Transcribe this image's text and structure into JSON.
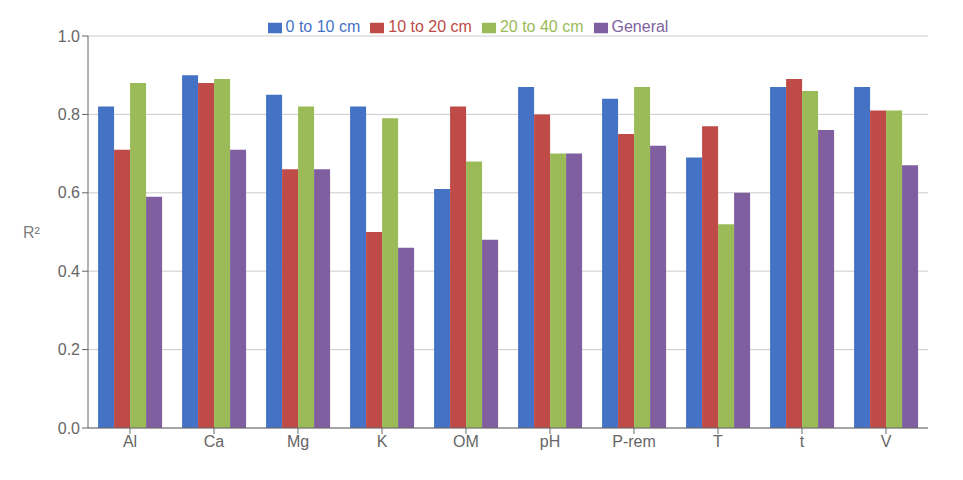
{
  "chart_data": {
    "type": "bar",
    "y_label": "R²",
    "categories": [
      "Al",
      "Ca",
      "Mg",
      "K",
      "OM",
      "pH",
      "P-rem",
      "T",
      "t",
      "V"
    ],
    "series": [
      {
        "name": "0 to 10 cm",
        "color": "#4472C4",
        "values": [
          0.82,
          0.9,
          0.85,
          0.82,
          0.61,
          0.87,
          0.84,
          0.69,
          0.87,
          0.87
        ]
      },
      {
        "name": "10 to 20 cm",
        "color": "#BE4B48",
        "values": [
          0.71,
          0.88,
          0.66,
          0.5,
          0.82,
          0.8,
          0.75,
          0.77,
          0.89,
          0.81
        ]
      },
      {
        "name": "20 to 40 cm",
        "color": "#9BBB59",
        "values": [
          0.88,
          0.89,
          0.82,
          0.79,
          0.68,
          0.7,
          0.87,
          0.52,
          0.86,
          0.81
        ]
      },
      {
        "name": "General",
        "color": "#7F5FA0",
        "values": [
          0.59,
          0.71,
          0.66,
          0.46,
          0.48,
          0.7,
          0.72,
          0.6,
          0.76,
          0.67
        ]
      }
    ],
    "ylim": [
      0.0,
      1.0
    ],
    "yticks": [
      {
        "value": 0.0,
        "label": "0.0"
      },
      0.2,
      0.4,
      0.6,
      0.8,
      {
        "value": 1.0,
        "label": "1.0"
      }
    ],
    "grid": true,
    "legend": "top"
  }
}
